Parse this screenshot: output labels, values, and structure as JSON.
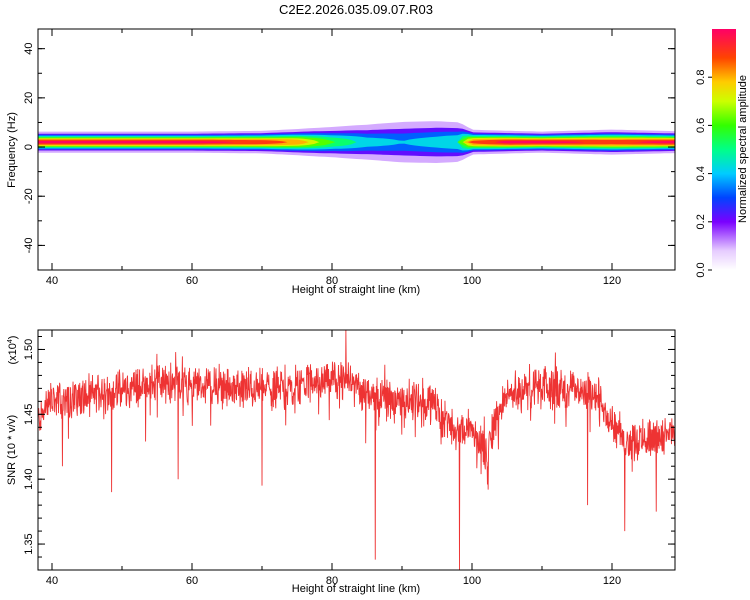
{
  "chart_data": [
    {
      "type": "heatmap",
      "title": "C2E2.2026.035.09.07.R03",
      "xlabel": "Height of straight line (km)",
      "ylabel": "Frequency (Hz)",
      "xlim": [
        38,
        129
      ],
      "ylim": [
        -50,
        48
      ],
      "xticks": [
        "40",
        "60",
        "80",
        "100",
        "120"
      ],
      "yticks": [
        "40",
        "20",
        "0",
        "-20",
        "-40"
      ],
      "ridge_frequency_hz": 2,
      "band": {
        "x": [
          38,
          60,
          70,
          75,
          80,
          85,
          90,
          95,
          98,
          100,
          105,
          110,
          120,
          129
        ],
        "halfwidth_hz": [
          2.5,
          2.5,
          2.7,
          3.2,
          4.0,
          5.0,
          6.0,
          6.0,
          5.5,
          3.0,
          2.7,
          2.5,
          3.0,
          2.6
        ],
        "peak_amplitude": [
          1.0,
          1.0,
          0.95,
          0.85,
          0.6,
          0.45,
          0.4,
          0.45,
          0.5,
          0.9,
          1.0,
          1.0,
          0.95,
          1.0
        ]
      },
      "colorbar": {
        "label": "Normalized spectral amplitude",
        "ticks": [
          "0.0",
          "0.2",
          "0.4",
          "0.6",
          "0.8"
        ],
        "range": [
          0,
          1
        ]
      }
    },
    {
      "type": "line",
      "xlabel": "Height of straight line (km)",
      "ylabel": "SNR (10 * v/v)",
      "multiplier_label": "(x10",
      "multiplier_exp": "4",
      "xlim": [
        38,
        129
      ],
      "ylim": [
        1.33,
        1.515
      ],
      "xticks": [
        "40",
        "60",
        "80",
        "100",
        "120"
      ],
      "yticks": [
        "1.50",
        "1.45",
        "1.40",
        "1.35"
      ],
      "color": "#ee3333",
      "series": [
        {
          "x": [
            38,
            40,
            42,
            45,
            50,
            55,
            60,
            65,
            70,
            75,
            80,
            82,
            85,
            88,
            90,
            93,
            95,
            97,
            98,
            100,
            102,
            103,
            105,
            110,
            115,
            118,
            120,
            122,
            125,
            129
          ],
          "mean": [
            1.445,
            1.462,
            1.46,
            1.465,
            1.468,
            1.475,
            1.472,
            1.47,
            1.47,
            1.472,
            1.478,
            1.475,
            1.468,
            1.462,
            1.46,
            1.462,
            1.455,
            1.44,
            1.435,
            1.44,
            1.42,
            1.438,
            1.465,
            1.47,
            1.47,
            1.465,
            1.445,
            1.43,
            1.432,
            1.435
          ],
          "noise": 0.012,
          "spikes": [
            {
              "x": 86.2,
              "y": 1.338
            },
            {
              "x": 98.2,
              "y": 1.33
            },
            {
              "x": 102.3,
              "y": 1.392
            },
            {
              "x": 48.5,
              "y": 1.39
            },
            {
              "x": 41.5,
              "y": 1.41
            },
            {
              "x": 121.8,
              "y": 1.36
            },
            {
              "x": 126.3,
              "y": 1.375
            },
            {
              "x": 116.5,
              "y": 1.38
            },
            {
              "x": 58,
              "y": 1.4
            },
            {
              "x": 70,
              "y": 1.395
            },
            {
              "x": 82,
              "y": 1.515
            }
          ]
        }
      ]
    }
  ]
}
